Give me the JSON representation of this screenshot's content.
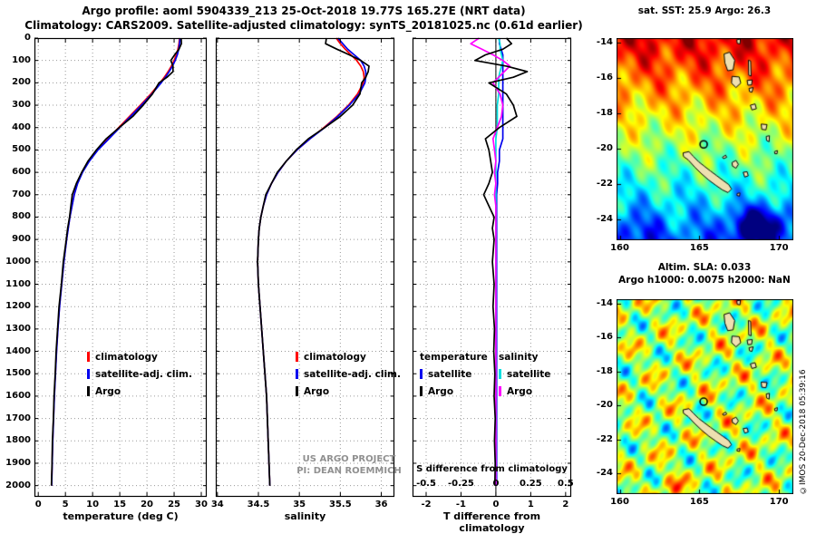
{
  "header": {
    "line1": "Argo profile: aoml 5904339_213 25-Oct-2018 19.77S 165.27E (NRT data)",
    "line2": "Climatology: CARS2009. Satellite-adjusted climatology: synTS_20181025.nc (0.61d earlier)"
  },
  "credit": "©IMOS 20-Dec-2018 05:39:16",
  "watermark": {
    "line1": "US ARGO PROJECT",
    "line2": "PI: DEAN ROEMMICH"
  },
  "colors": {
    "climatology": "#ff0000",
    "satellite": "#0000ee",
    "argo": "#000000",
    "sal_satellite": "#00dede",
    "sal_argo": "#ff00ff",
    "grid": "#9a9a9a",
    "land": "#eedfb0"
  },
  "chart_data": [
    {
      "id": "temperature",
      "type": "line",
      "xlabel": "temperature (deg C)",
      "xlim": [
        -0.7,
        31.0
      ],
      "xticks": [
        0,
        5,
        10,
        15,
        20,
        25,
        30
      ],
      "ylim": [
        0,
        2050
      ],
      "yticks": [
        0,
        100,
        200,
        300,
        400,
        500,
        600,
        700,
        800,
        900,
        1000,
        1100,
        1200,
        1300,
        1400,
        1500,
        1600,
        1700,
        1800,
        1900,
        2000
      ],
      "show_ylabels": true,
      "legend_pos": {
        "left": 58,
        "top": 342
      },
      "legend": [
        {
          "label": "climatology",
          "color_key": "climatology"
        },
        {
          "label": "satellite-adj. clim.",
          "color_key": "satellite"
        },
        {
          "label": "Argo",
          "color_key": "argo"
        }
      ],
      "depths": [
        0,
        25,
        50,
        75,
        100,
        125,
        150,
        175,
        200,
        250,
        300,
        350,
        400,
        450,
        500,
        550,
        600,
        650,
        700,
        750,
        800,
        850,
        900,
        1000,
        1100,
        1200,
        1300,
        1400,
        1500,
        1600,
        1700,
        1800,
        1900,
        2000
      ],
      "series": [
        {
          "name": "climatology",
          "color_key": "climatology",
          "values": [
            26.0,
            25.9,
            25.7,
            25.4,
            25.0,
            24.5,
            23.9,
            23.2,
            22.4,
            20.7,
            18.8,
            16.8,
            14.8,
            12.8,
            10.9,
            9.3,
            8.1,
            7.2,
            6.6,
            6.2,
            5.8,
            5.5,
            5.2,
            4.7,
            4.3,
            3.9,
            3.6,
            3.35,
            3.15,
            2.95,
            2.8,
            2.65,
            2.55,
            2.45
          ]
        },
        {
          "name": "satellite-adj-clim",
          "color_key": "satellite",
          "values": [
            26.1,
            26.0,
            25.85,
            25.6,
            25.2,
            24.7,
            24.1,
            23.4,
            22.6,
            20.9,
            19.0,
            17.0,
            15.0,
            13.0,
            11.0,
            9.4,
            8.15,
            7.25,
            6.62,
            6.22,
            5.82,
            5.52,
            5.22,
            4.72,
            4.32,
            3.92,
            3.62,
            3.37,
            3.17,
            2.97,
            2.82,
            2.67,
            2.57,
            2.47
          ]
        },
        {
          "name": "Argo",
          "color_key": "argo",
          "values": [
            26.3,
            26.35,
            25.9,
            25.1,
            24.4,
            24.8,
            24.8,
            23.7,
            22.2,
            21.0,
            19.3,
            17.4,
            14.9,
            12.5,
            10.7,
            9.15,
            8.0,
            7.0,
            6.25,
            6.0,
            5.75,
            5.4,
            5.15,
            4.6,
            4.25,
            3.82,
            3.56,
            3.29,
            3.12,
            2.9,
            2.78,
            2.61,
            2.53,
            2.42
          ]
        }
      ]
    },
    {
      "id": "salinity",
      "type": "line",
      "xlabel": "salinity",
      "xlim": [
        33.98,
        36.16
      ],
      "xticks": [
        34,
        34.5,
        35,
        35.5,
        36
      ],
      "ylim": [
        0,
        2050
      ],
      "yticks": [
        0,
        100,
        200,
        300,
        400,
        500,
        600,
        700,
        800,
        900,
        1000,
        1100,
        1200,
        1300,
        1400,
        1500,
        1600,
        1700,
        1800,
        1900,
        2000
      ],
      "show_ylabels": false,
      "legend_pos": {
        "left": 88,
        "top": 342
      },
      "legend": [
        {
          "label": "climatology",
          "color_key": "climatology"
        },
        {
          "label": "satellite-adj. clim.",
          "color_key": "satellite"
        },
        {
          "label": "Argo",
          "color_key": "argo"
        }
      ],
      "depths": [
        0,
        25,
        50,
        75,
        100,
        125,
        150,
        175,
        200,
        250,
        300,
        350,
        400,
        450,
        500,
        550,
        600,
        650,
        700,
        750,
        800,
        850,
        900,
        1000,
        1100,
        1200,
        1300,
        1400,
        1500,
        1600,
        1700,
        1800,
        1900,
        2000
      ],
      "series": [
        {
          "name": "climatology",
          "color_key": "climatology",
          "values": [
            35.45,
            35.5,
            35.56,
            35.63,
            35.7,
            35.75,
            35.78,
            35.79,
            35.78,
            35.71,
            35.6,
            35.46,
            35.3,
            35.13,
            34.97,
            34.84,
            34.74,
            34.66,
            34.6,
            34.56,
            34.53,
            34.51,
            34.5,
            34.49,
            34.5,
            34.52,
            34.54,
            34.56,
            34.58,
            34.6,
            34.61,
            34.62,
            34.63,
            34.64
          ]
        },
        {
          "name": "satellite-adj-clim",
          "color_key": "satellite",
          "values": [
            35.47,
            35.53,
            35.59,
            35.67,
            35.75,
            35.79,
            35.81,
            35.81,
            35.8,
            35.73,
            35.61,
            35.47,
            35.31,
            35.13,
            34.97,
            34.84,
            34.74,
            34.66,
            34.6,
            34.56,
            34.53,
            34.51,
            34.5,
            34.49,
            34.5,
            34.52,
            34.54,
            34.56,
            34.58,
            34.6,
            34.61,
            34.62,
            34.63,
            34.64
          ]
        },
        {
          "name": "Argo",
          "color_key": "argo",
          "values": [
            35.33,
            35.32,
            35.46,
            35.61,
            35.75,
            35.85,
            35.84,
            35.81,
            35.76,
            35.74,
            35.65,
            35.5,
            35.31,
            35.11,
            34.96,
            34.84,
            34.73,
            34.66,
            34.59,
            34.56,
            34.53,
            34.51,
            34.5,
            34.49,
            34.5,
            34.52,
            34.54,
            34.56,
            34.58,
            34.6,
            34.61,
            34.62,
            34.63,
            34.64
          ]
        }
      ]
    },
    {
      "id": "difference",
      "type": "line-dual",
      "xlabel_bottom": "T difference from climatology",
      "xlabel_inner": "S difference from climatology",
      "xlim": [
        -2.39,
        2.16
      ],
      "xticks": [
        -2,
        -1,
        0,
        1,
        2
      ],
      "xlimS": [
        -0.5975,
        0.54
      ],
      "xticksS": [
        -0.5,
        -0.25,
        0,
        0.25,
        0.5
      ],
      "ylim": [
        0,
        2050
      ],
      "yticks": [
        0,
        100,
        200,
        300,
        400,
        500,
        600,
        700,
        800,
        900,
        1000,
        1100,
        1200,
        1300,
        1400,
        1500,
        1600,
        1700,
        1800,
        1900,
        2000
      ],
      "show_ylabels": false,
      "zero_line": true,
      "legend_top": 342,
      "legend_groups": [
        {
          "title": "temperature",
          "left": 8,
          "entries": [
            {
              "label": "satellite",
              "color_key": "satellite"
            },
            {
              "label": "Argo",
              "color_key": "argo"
            }
          ]
        },
        {
          "title": "salinity",
          "left": 95,
          "entries": [
            {
              "label": "satellite",
              "color_key": "sal_satellite"
            },
            {
              "label": "Argo",
              "color_key": "sal_argo"
            }
          ]
        }
      ],
      "depths": [
        0,
        25,
        50,
        75,
        100,
        125,
        150,
        175,
        200,
        250,
        300,
        350,
        400,
        450,
        500,
        550,
        600,
        650,
        700,
        750,
        800,
        850,
        900,
        1000,
        1100,
        1200,
        1300,
        1400,
        1500,
        1600,
        1700,
        1800,
        1900,
        2000
      ],
      "series": [
        {
          "name": "temperature-satellite",
          "scale": "T",
          "color_key": "satellite",
          "values": [
            0.1,
            0.1,
            0.15,
            0.2,
            0.2,
            0.2,
            0.2,
            0.2,
            0.2,
            0.2,
            0.2,
            0.2,
            0.2,
            0.2,
            0.1,
            0.1,
            0.05,
            0.05,
            0.02,
            0.02,
            0.02,
            0.02,
            0.02,
            0.02,
            0.02,
            0.02,
            0.02,
            0.02,
            0.02,
            0.02,
            0.02,
            0.02,
            0.02,
            0.02
          ]
        },
        {
          "name": "salinity-satellite",
          "scale": "S",
          "color_key": "sal_satellite",
          "values": [
            0.02,
            0.03,
            0.03,
            0.04,
            0.05,
            0.04,
            0.03,
            0.02,
            0.02,
            0.02,
            0.01,
            0.01,
            0.01,
            0,
            0,
            0,
            0,
            0,
            0,
            0,
            0,
            0,
            0,
            0,
            0,
            0,
            0,
            0,
            0,
            0,
            0,
            0,
            0,
            0
          ]
        },
        {
          "name": "salinity-Argo",
          "scale": "S",
          "color_key": "sal_argo",
          "values": [
            -0.12,
            -0.18,
            -0.1,
            -0.02,
            0.05,
            0.1,
            0.06,
            0.02,
            -0.02,
            0.03,
            0.05,
            0.04,
            0.01,
            -0.02,
            -0.01,
            0,
            -0.01,
            0,
            -0.01,
            0,
            0,
            0,
            0,
            0,
            0,
            0,
            0,
            0,
            0,
            0,
            0,
            0,
            0,
            0
          ]
        },
        {
          "name": "temperature-Argo",
          "scale": "T",
          "color_key": "argo",
          "values": [
            0.3,
            0.45,
            0.2,
            -0.3,
            -0.6,
            0.3,
            0.9,
            0.5,
            -0.2,
            0.3,
            0.5,
            0.6,
            0.1,
            -0.3,
            -0.2,
            -0.15,
            -0.1,
            -0.2,
            -0.35,
            -0.2,
            -0.05,
            -0.1,
            -0.05,
            -0.1,
            -0.05,
            -0.08,
            -0.04,
            -0.06,
            -0.03,
            -0.05,
            -0.02,
            -0.04,
            -0.02,
            -0.03
          ]
        }
      ]
    },
    {
      "id": "sst",
      "type": "map",
      "title": "sat. SST: 25.9 Argo: 26.3",
      "field": "sst",
      "lon_range": [
        159.8,
        170.9
      ],
      "lat_range": [
        -25.2,
        -13.75
      ],
      "xticks": [
        160,
        165,
        170
      ],
      "yticks": [
        -14,
        -16,
        -18,
        -20,
        -22,
        -24
      ],
      "marker": {
        "lon": 165.27,
        "lat": -19.77
      }
    },
    {
      "id": "sla",
      "type": "map",
      "title_line1": "Altim. SLA: 0.033",
      "title_line2": "Argo h1000: 0.0075 h2000: NaN",
      "field": "sla",
      "lon_range": [
        159.8,
        170.9
      ],
      "lat_range": [
        -25.2,
        -13.75
      ],
      "xticks": [
        160,
        165,
        170
      ],
      "yticks": [
        -14,
        -16,
        -18,
        -20,
        -22,
        -24
      ],
      "marker": {
        "lon": 165.27,
        "lat": -19.77
      }
    }
  ],
  "map_islands": [
    {
      "name": "grande-terre",
      "points": [
        [
          163.98,
          -20.25
        ],
        [
          164.35,
          -20.18
        ],
        [
          164.62,
          -20.45
        ],
        [
          164.95,
          -20.75
        ],
        [
          165.3,
          -21.0
        ],
        [
          165.7,
          -21.28
        ],
        [
          166.1,
          -21.55
        ],
        [
          166.5,
          -21.82
        ],
        [
          166.85,
          -22.05
        ],
        [
          167.02,
          -22.3
        ],
        [
          166.8,
          -22.5
        ],
        [
          166.45,
          -22.35
        ],
        [
          166.05,
          -22.1
        ],
        [
          165.6,
          -21.8
        ],
        [
          165.15,
          -21.45
        ],
        [
          164.7,
          -21.05
        ],
        [
          164.3,
          -20.65
        ],
        [
          164.0,
          -20.45
        ]
      ]
    },
    {
      "name": "ouvea",
      "points": [
        [
          166.45,
          -20.5
        ],
        [
          166.65,
          -20.38
        ],
        [
          166.72,
          -20.5
        ],
        [
          166.52,
          -20.58
        ]
      ]
    },
    {
      "name": "lifou",
      "points": [
        [
          167.05,
          -20.8
        ],
        [
          167.3,
          -20.68
        ],
        [
          167.45,
          -20.9
        ],
        [
          167.3,
          -21.12
        ],
        [
          167.08,
          -21.0
        ]
      ]
    },
    {
      "name": "mare",
      "points": [
        [
          167.75,
          -21.35
        ],
        [
          168.0,
          -21.32
        ],
        [
          168.07,
          -21.55
        ],
        [
          167.85,
          -21.62
        ]
      ]
    },
    {
      "name": "isle-of-pines",
      "points": [
        [
          167.38,
          -22.55
        ],
        [
          167.55,
          -22.52
        ],
        [
          167.52,
          -22.7
        ],
        [
          167.36,
          -22.66
        ]
      ]
    },
    {
      "name": "espiritu-santo",
      "points": [
        [
          166.55,
          -14.65
        ],
        [
          166.9,
          -14.55
        ],
        [
          167.22,
          -15.0
        ],
        [
          167.12,
          -15.55
        ],
        [
          166.78,
          -15.6
        ],
        [
          166.6,
          -15.15
        ]
      ]
    },
    {
      "name": "malakula",
      "points": [
        [
          167.05,
          -15.92
        ],
        [
          167.5,
          -15.95
        ],
        [
          167.6,
          -16.3
        ],
        [
          167.3,
          -16.55
        ],
        [
          167.02,
          -16.3
        ]
      ]
    },
    {
      "name": "maewo-pentecost",
      "points": [
        [
          168.08,
          -15.0
        ],
        [
          168.22,
          -15.05
        ],
        [
          168.25,
          -15.9
        ],
        [
          168.1,
          -15.85
        ]
      ]
    },
    {
      "name": "ambrym",
      "points": [
        [
          168.0,
          -16.15
        ],
        [
          168.32,
          -16.12
        ],
        [
          168.28,
          -16.4
        ],
        [
          168.05,
          -16.42
        ]
      ]
    },
    {
      "name": "epi",
      "points": [
        [
          168.12,
          -16.6
        ],
        [
          168.38,
          -16.55
        ],
        [
          168.3,
          -16.82
        ],
        [
          168.15,
          -16.78
        ]
      ]
    },
    {
      "name": "efate",
      "points": [
        [
          168.2,
          -17.55
        ],
        [
          168.5,
          -17.48
        ],
        [
          168.58,
          -17.75
        ],
        [
          168.3,
          -17.82
        ]
      ]
    },
    {
      "name": "erromango",
      "points": [
        [
          168.88,
          -18.62
        ],
        [
          169.25,
          -18.65
        ],
        [
          169.18,
          -18.95
        ],
        [
          168.92,
          -18.92
        ]
      ]
    },
    {
      "name": "tanna",
      "points": [
        [
          169.2,
          -19.32
        ],
        [
          169.4,
          -19.28
        ],
        [
          169.38,
          -19.62
        ],
        [
          169.22,
          -19.55
        ]
      ]
    },
    {
      "name": "aneityum",
      "points": [
        [
          169.72,
          -20.18
        ],
        [
          169.9,
          -20.12
        ],
        [
          169.88,
          -20.3
        ],
        [
          169.74,
          -20.3
        ]
      ]
    },
    {
      "name": "banks",
      "points": [
        [
          167.35,
          -13.85
        ],
        [
          167.58,
          -13.8
        ],
        [
          167.55,
          -14.08
        ],
        [
          167.38,
          -14.05
        ]
      ]
    }
  ]
}
